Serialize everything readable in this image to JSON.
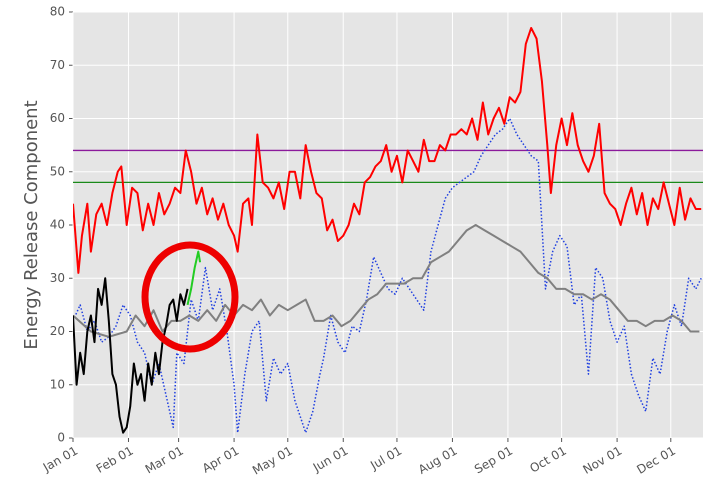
{
  "chart_data": {
    "type": "line",
    "y_label": "Energy Release Component",
    "xlim": [
      0,
      352
    ],
    "xticks": [
      {
        "value": 0,
        "label": "Jan 01"
      },
      {
        "value": 31,
        "label": "Feb 01"
      },
      {
        "value": 59,
        "label": "Mar 01"
      },
      {
        "value": 90,
        "label": "Apr 01"
      },
      {
        "value": 120,
        "label": "May 01"
      },
      {
        "value": 151,
        "label": "Jun 01"
      },
      {
        "value": 181,
        "label": "Jul 01"
      },
      {
        "value": 212,
        "label": "Aug 01"
      },
      {
        "value": 243,
        "label": "Sep 01"
      },
      {
        "value": 273,
        "label": "Oct 01"
      },
      {
        "value": 304,
        "label": "Nov 01"
      },
      {
        "value": 334,
        "label": "Dec 01"
      }
    ],
    "ylim": [
      0,
      80
    ],
    "yticks": [
      0,
      10,
      20,
      30,
      40,
      50,
      60,
      70,
      80
    ],
    "grid": true,
    "hlines": [
      {
        "y": 54,
        "color": "#8b1a9b"
      },
      {
        "y": 48,
        "color": "#1a8a1a"
      }
    ],
    "series": [
      {
        "color": "#1f3fe0",
        "linestyle": "dotted",
        "x": [
          0,
          4,
          8,
          12,
          16,
          20,
          24,
          28,
          32,
          36,
          40,
          44,
          48,
          52,
          56,
          58,
          62,
          66,
          70,
          74,
          78,
          82,
          86,
          90,
          92,
          96,
          100,
          104,
          108,
          112,
          116,
          120,
          124,
          128,
          130,
          134,
          138,
          140,
          144,
          148,
          152,
          156,
          160,
          164,
          168,
          172,
          176,
          180,
          184,
          188,
          192,
          196,
          200,
          204,
          208,
          212,
          216,
          220,
          224,
          228,
          232,
          236,
          240,
          244,
          248,
          252,
          256,
          260,
          264,
          268,
          272,
          276,
          280,
          284,
          288,
          292,
          296,
          300,
          304,
          308,
          312,
          316,
          320,
          324,
          328,
          332,
          336,
          340,
          344,
          348,
          351
        ],
        "values": [
          22,
          25,
          20,
          22,
          18,
          19,
          21,
          25,
          23,
          18,
          16,
          10,
          14,
          8,
          2,
          16,
          14,
          26,
          22,
          32,
          24,
          28,
          20,
          10,
          1,
          12,
          20,
          22,
          7,
          15,
          12,
          14,
          7,
          3,
          1,
          5,
          12,
          15,
          23,
          18,
          16,
          21,
          20,
          26,
          34,
          31,
          28,
          27,
          30,
          28,
          26,
          24,
          35,
          40,
          45,
          47,
          48,
          49,
          50,
          53,
          55,
          57,
          58,
          60,
          57,
          55,
          53,
          52,
          28,
          35,
          38,
          36,
          25,
          27,
          12,
          32,
          30,
          22,
          18,
          21,
          12,
          8,
          5,
          15,
          12,
          20,
          25,
          21,
          30,
          28,
          30
        ]
      },
      {
        "color": "#808080",
        "linestyle": "solid",
        "x": [
          0,
          10,
          20,
          30,
          35,
          40,
          45,
          50,
          55,
          60,
          65,
          70,
          75,
          80,
          85,
          90,
          95,
          100,
          105,
          110,
          115,
          120,
          125,
          130,
          135,
          140,
          145,
          150,
          155,
          160,
          165,
          170,
          175,
          180,
          185,
          190,
          195,
          200,
          205,
          210,
          215,
          220,
          225,
          230,
          235,
          240,
          245,
          250,
          255,
          260,
          265,
          270,
          275,
          280,
          285,
          290,
          295,
          300,
          305,
          310,
          315,
          320,
          325,
          330,
          335,
          340,
          345,
          350
        ],
        "values": [
          23,
          20,
          19,
          20,
          23,
          21,
          24,
          20,
          22,
          22,
          23,
          22,
          24,
          22,
          25,
          23,
          25,
          24,
          26,
          23,
          25,
          24,
          25,
          26,
          22,
          22,
          23,
          21,
          22,
          24,
          26,
          27,
          29,
          29,
          29,
          30,
          30,
          33,
          34,
          35,
          37,
          39,
          40,
          39,
          38,
          37,
          36,
          35,
          33,
          31,
          30,
          28,
          28,
          27,
          27,
          26,
          27,
          26,
          24,
          22,
          22,
          21,
          22,
          22,
          23,
          22,
          20,
          20
        ]
      },
      {
        "color": "#ff0000",
        "linestyle": "solid",
        "x": [
          0,
          3,
          5,
          8,
          10,
          13,
          16,
          19,
          22,
          25,
          27,
          30,
          33,
          36,
          39,
          42,
          45,
          48,
          51,
          54,
          57,
          60,
          63,
          66,
          69,
          72,
          75,
          78,
          81,
          84,
          87,
          90,
          92,
          95,
          98,
          100,
          103,
          106,
          109,
          112,
          115,
          118,
          121,
          124,
          127,
          130,
          133,
          136,
          139,
          142,
          145,
          148,
          151,
          154,
          157,
          160,
          163,
          166,
          169,
          172,
          175,
          178,
          181,
          184,
          187,
          190,
          193,
          196,
          199,
          202,
          205,
          208,
          211,
          214,
          217,
          220,
          223,
          226,
          229,
          232,
          235,
          238,
          241,
          244,
          247,
          250,
          253,
          256,
          259,
          262,
          265,
          267,
          270,
          273,
          276,
          279,
          282,
          285,
          288,
          291,
          294,
          297,
          300,
          303,
          306,
          309,
          312,
          315,
          318,
          321,
          324,
          327,
          330,
          333,
          336,
          339,
          342,
          345,
          348,
          351
        ],
        "values": [
          44,
          31,
          38,
          44,
          35,
          42,
          44,
          40,
          46,
          50,
          51,
          40,
          47,
          46,
          39,
          44,
          40,
          46,
          42,
          44,
          47,
          46,
          54,
          50,
          44,
          47,
          42,
          45,
          41,
          44,
          40,
          38,
          35,
          44,
          45,
          40,
          57,
          48,
          47,
          45,
          48,
          43,
          50,
          50,
          45,
          55,
          50,
          46,
          45,
          39,
          41,
          37,
          38,
          40,
          44,
          42,
          48,
          49,
          51,
          52,
          55,
          50,
          53,
          48,
          54,
          52,
          50,
          56,
          52,
          52,
          55,
          54,
          57,
          57,
          58,
          57,
          60,
          56,
          63,
          57,
          60,
          62,
          59,
          64,
          63,
          65,
          74,
          77,
          75,
          67,
          55,
          46,
          55,
          60,
          55,
          61,
          55,
          52,
          50,
          53,
          59,
          46,
          44,
          43,
          40,
          44,
          47,
          42,
          46,
          40,
          45,
          43,
          48,
          44,
          40,
          47,
          41,
          45,
          43,
          43
        ]
      },
      {
        "color": "#000000",
        "linestyle": "solid",
        "x": [
          0,
          2,
          4,
          6,
          8,
          10,
          12,
          14,
          16,
          18,
          20,
          22,
          24,
          26,
          28,
          30,
          32,
          34,
          36,
          38,
          40,
          42,
          44,
          46,
          48,
          50,
          52,
          54,
          56,
          58,
          60,
          62,
          64
        ],
        "values": [
          23,
          10,
          16,
          12,
          20,
          23,
          18,
          28,
          25,
          30,
          22,
          12,
          10,
          4,
          1,
          2,
          6,
          14,
          10,
          12,
          7,
          14,
          10,
          16,
          12,
          18,
          21,
          25,
          26,
          22,
          27,
          25,
          28
        ]
      },
      {
        "color": "#22cc22",
        "linestyle": "solid",
        "x": [
          64,
          66,
          68,
          70,
          71
        ],
        "values": [
          25,
          28,
          32,
          35,
          33
        ]
      }
    ]
  }
}
